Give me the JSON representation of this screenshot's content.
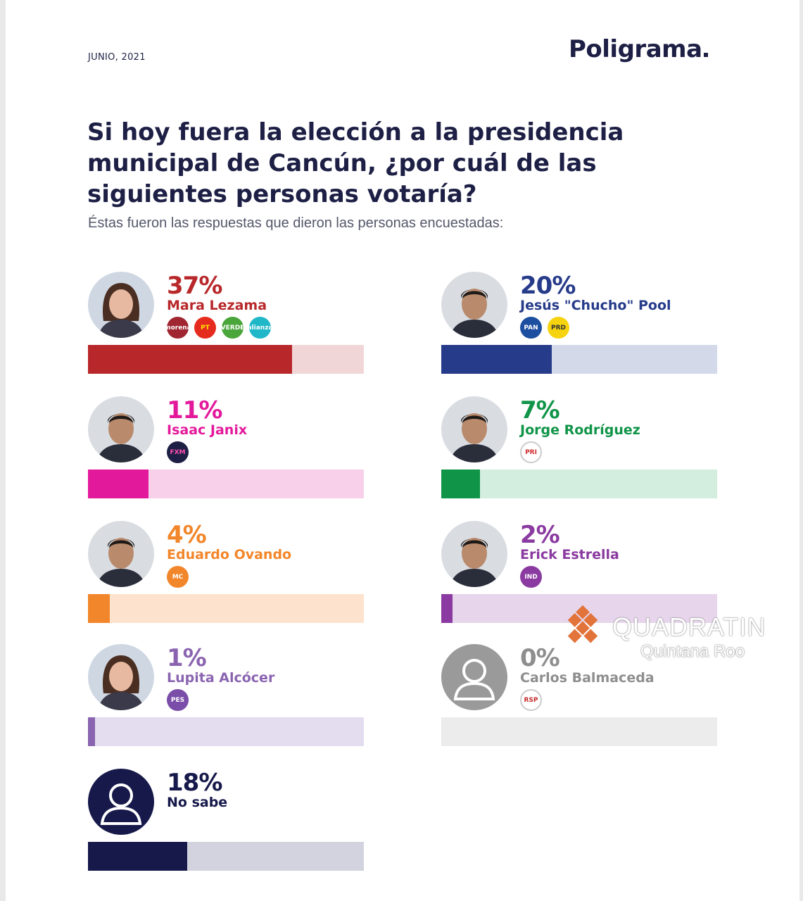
{
  "header": {
    "date": "JUNIO, 2021",
    "brand": "Poligrama"
  },
  "question": "Si hoy fuera la elección a la presidencia municipal de Cancún, ¿por cuál de las siguientes personas votaría?",
  "subtitle": "Éstas fueron las respuestas que dieron las personas encuestadas:",
  "watermark": {
    "line1": "QUADRATIN",
    "line2": "Quintana Roo",
    "color": "#e2733a"
  },
  "chart_data": {
    "type": "bar",
    "categories": [
      "Mara Lezama",
      "Jesús \"Chucho\" Pool",
      "Isaac Janix",
      "Jorge Rodríguez",
      "Eduardo Ovando",
      "Erick Estrella",
      "Lupita Alcócer",
      "Carlos Balmaceda",
      "No sabe"
    ],
    "values": [
      37,
      20,
      11,
      7,
      4,
      2,
      1,
      0,
      18
    ],
    "ylim": [
      0,
      100
    ],
    "items": [
      {
        "label": "37%",
        "name": "Mara Lezama",
        "value": 37,
        "color": "#b8282a",
        "track": "#f1d6d7",
        "avatar": "woman",
        "parties": [
          {
            "name": "morena",
            "text": "morena",
            "bg": "#a02731",
            "fg": "#ffffff"
          },
          {
            "name": "pt",
            "text": "PT",
            "bg": "#e52b1e",
            "fg": "#ffe000"
          },
          {
            "name": "verde",
            "text": "VERDE",
            "bg": "#4aa53a",
            "fg": "#ffffff"
          },
          {
            "name": "nueva-alianza",
            "text": "alianza",
            "bg": "#20b8c8",
            "fg": "#ffffff"
          }
        ]
      },
      {
        "label": "20%",
        "name": "Jesús \"Chucho\" Pool",
        "value": 20,
        "color": "#263b8a",
        "track": "#d3d9e8",
        "avatar": "man",
        "parties": [
          {
            "name": "pan",
            "text": "PAN",
            "bg": "#1d4fa0",
            "fg": "#ffffff"
          },
          {
            "name": "prd",
            "text": "PRD",
            "bg": "#f6d30f",
            "fg": "#333333"
          }
        ]
      },
      {
        "label": "11%",
        "name": "Isaac Janix",
        "value": 11,
        "color": "#e3199b",
        "track": "#f8d0ea",
        "avatar": "man",
        "parties": [
          {
            "name": "fuerza-por-mexico",
            "text": "FXM",
            "bg": "#1d1f45",
            "fg": "#ff4fb0"
          }
        ]
      },
      {
        "label": "7%",
        "name": "Jorge Rodríguez",
        "value": 7,
        "color": "#0f9448",
        "track": "#d3eede",
        "avatar": "man",
        "parties": [
          {
            "name": "pri",
            "text": "PRI",
            "bg": "#ffffff",
            "fg": "#d12b2b"
          }
        ]
      },
      {
        "label": "4%",
        "name": "Eduardo Ovando",
        "value": 4,
        "color": "#f2862a",
        "track": "#fde2cd",
        "avatar": "man",
        "parties": [
          {
            "name": "movimiento-ciudadano",
            "text": "MC",
            "bg": "#f2862a",
            "fg": "#ffffff"
          }
        ]
      },
      {
        "label": "2%",
        "name": "Erick Estrella",
        "value": 2,
        "color": "#8a3aa0",
        "track": "#e7d5ec",
        "avatar": "man",
        "parties": [
          {
            "name": "independiente",
            "text": "IND",
            "bg": "#8a3aa0",
            "fg": "#ffffff"
          }
        ]
      },
      {
        "label": "1%",
        "name": "Lupita Alcócer",
        "value": 1,
        "color": "#8a64b0",
        "track": "#e4dcef",
        "avatar": "woman",
        "parties": [
          {
            "name": "pes",
            "text": "PES",
            "bg": "#7a4da8",
            "fg": "#ffffff"
          }
        ]
      },
      {
        "label": "0%",
        "name": "Carlos Balmaceda",
        "value": 0,
        "color": "#8e8e8e",
        "track": "#ececec",
        "avatar": "placeholder-gray",
        "parties": [
          {
            "name": "rsp",
            "text": "RSP",
            "bg": "#ffffff",
            "fg": "#c42b2b"
          }
        ]
      },
      {
        "label": "18%",
        "name": "No sabe",
        "value": 18,
        "color": "#16194a",
        "track": "#d2d3de",
        "avatar": "placeholder-navy",
        "parties": []
      }
    ]
  }
}
